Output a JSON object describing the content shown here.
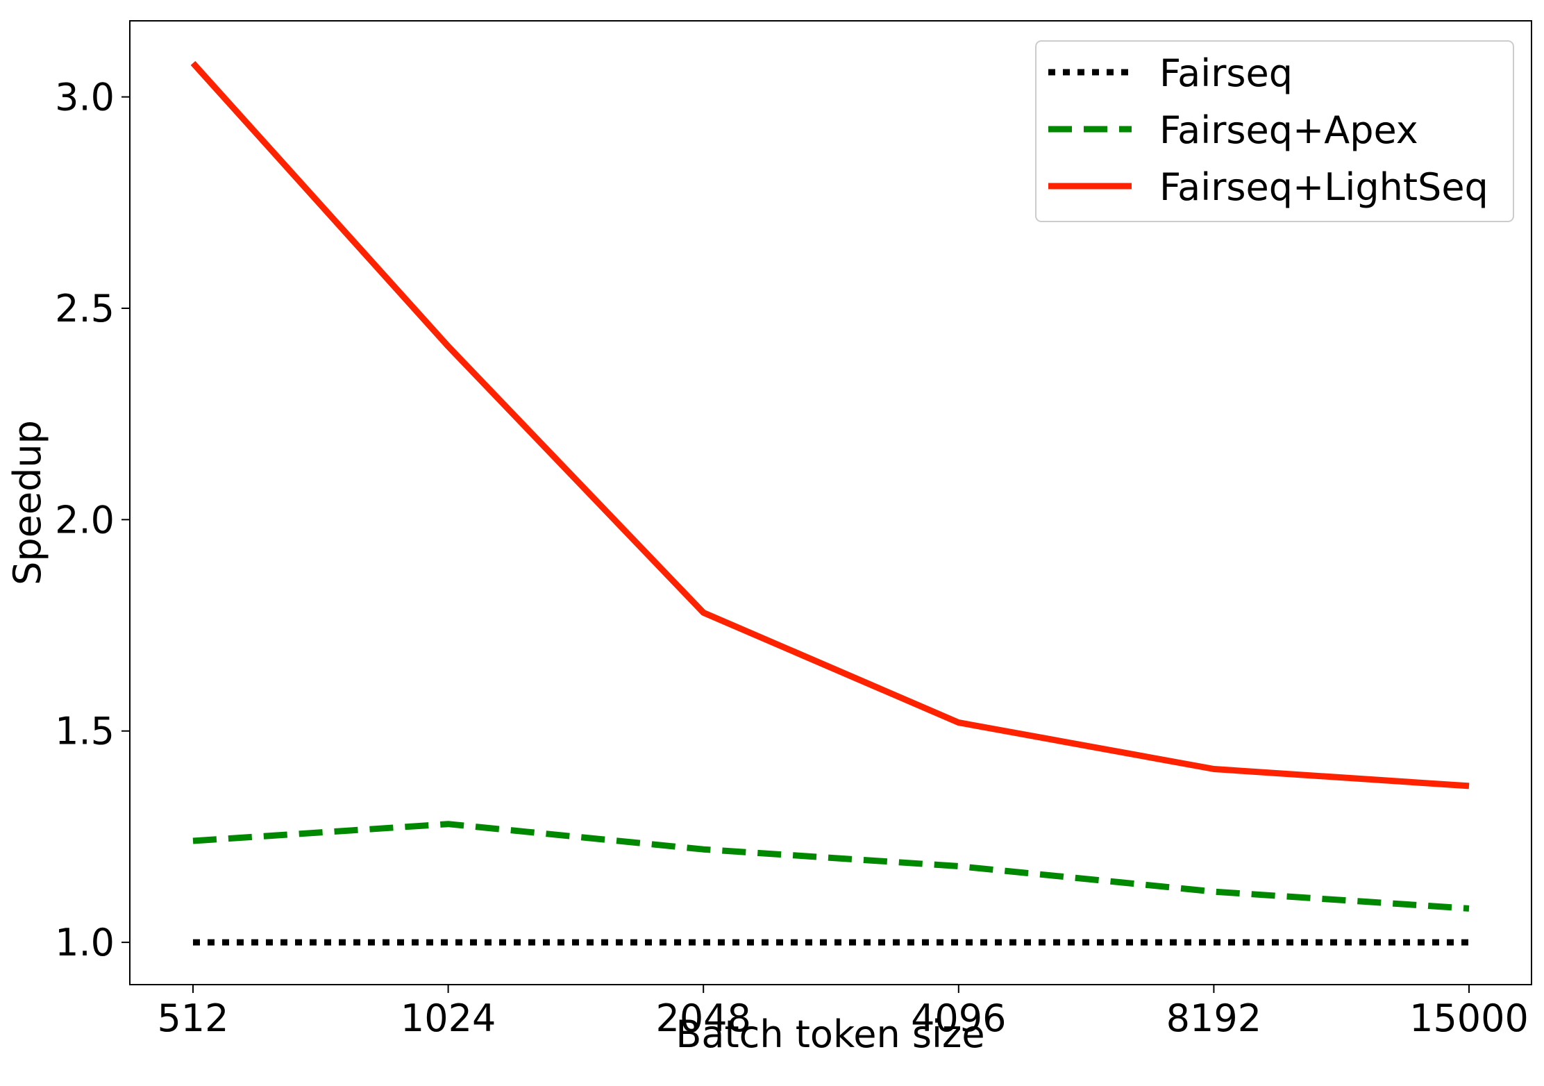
{
  "chart_data": {
    "type": "line",
    "title": "",
    "xlabel": "Batch token size",
    "ylabel": "Speedup",
    "categories": [
      "512",
      "1024",
      "2048",
      "4096",
      "8192",
      "15000"
    ],
    "ylim": [
      0.9,
      3.18
    ],
    "yticks": [
      "1.0",
      "1.5",
      "2.0",
      "2.5",
      "3.0"
    ],
    "grid": false,
    "legend_position": "top-right",
    "series": [
      {
        "name": "Fairseq",
        "values": [
          1.0,
          1.0,
          1.0,
          1.0,
          1.0,
          1.0
        ],
        "color": "#000000",
        "style": "dotted"
      },
      {
        "name": "Fairseq+Apex",
        "values": [
          1.24,
          1.28,
          1.22,
          1.18,
          1.12,
          1.08
        ],
        "color": "#008800",
        "style": "dashed"
      },
      {
        "name": "Fairseq+LightSeq",
        "values": [
          3.08,
          2.41,
          1.78,
          1.52,
          1.41,
          1.37
        ],
        "color": "#ff2200",
        "style": "solid"
      }
    ]
  }
}
